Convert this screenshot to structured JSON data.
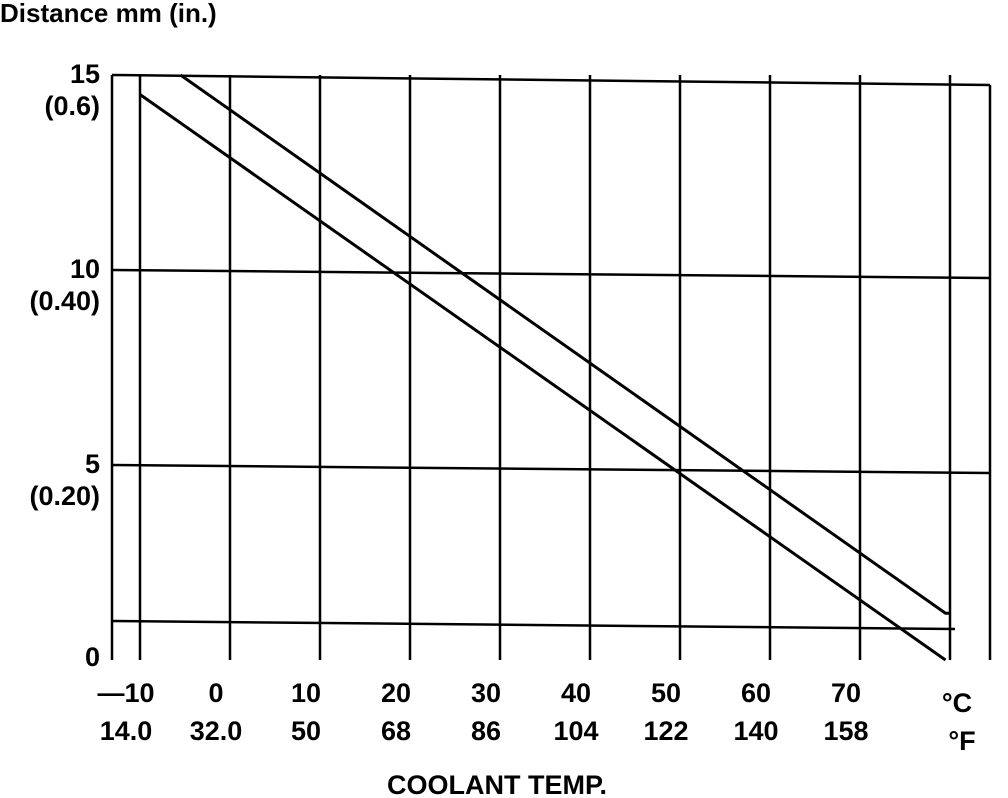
{
  "chart_data": {
    "type": "line",
    "title": "Distance mm (in.)",
    "xlabel": "COOLANT TEMP.",
    "ylabel": "",
    "xlim": [
      -10,
      80
    ],
    "ylim": [
      0,
      15
    ],
    "y_ticks": [
      {
        "value": 15,
        "mm": "15",
        "inch": "(0.6)"
      },
      {
        "value": 10,
        "mm": "10",
        "inch": "(0.40)"
      },
      {
        "value": 5,
        "mm": "5",
        "inch": "(0.20)"
      },
      {
        "value": 0,
        "mm": "0",
        "inch": ""
      }
    ],
    "x_ticks": [
      {
        "value": -10,
        "c": "—10",
        "f": "14.0"
      },
      {
        "value": 0,
        "c": "0",
        "f": "32.0"
      },
      {
        "value": 10,
        "c": "10",
        "f": "50"
      },
      {
        "value": 20,
        "c": "20",
        "f": "68"
      },
      {
        "value": 30,
        "c": "30",
        "f": "86"
      },
      {
        "value": 40,
        "c": "40",
        "f": "104"
      },
      {
        "value": 50,
        "c": "50",
        "f": "122"
      },
      {
        "value": 60,
        "c": "60",
        "f": "140"
      },
      {
        "value": 70,
        "c": "70",
        "f": "158"
      }
    ],
    "unit_c": "°C",
    "unit_f": "°F",
    "grid": true,
    "extra_gridlines_y": [
      1.0
    ],
    "series": [
      {
        "x": [
          -5.5,
          79.5,
          80
        ],
        "y": [
          15.0,
          1.2,
          1.2
        ]
      },
      {
        "x": [
          -10,
          79.5
        ],
        "y": [
          14.5,
          0
        ]
      }
    ]
  }
}
